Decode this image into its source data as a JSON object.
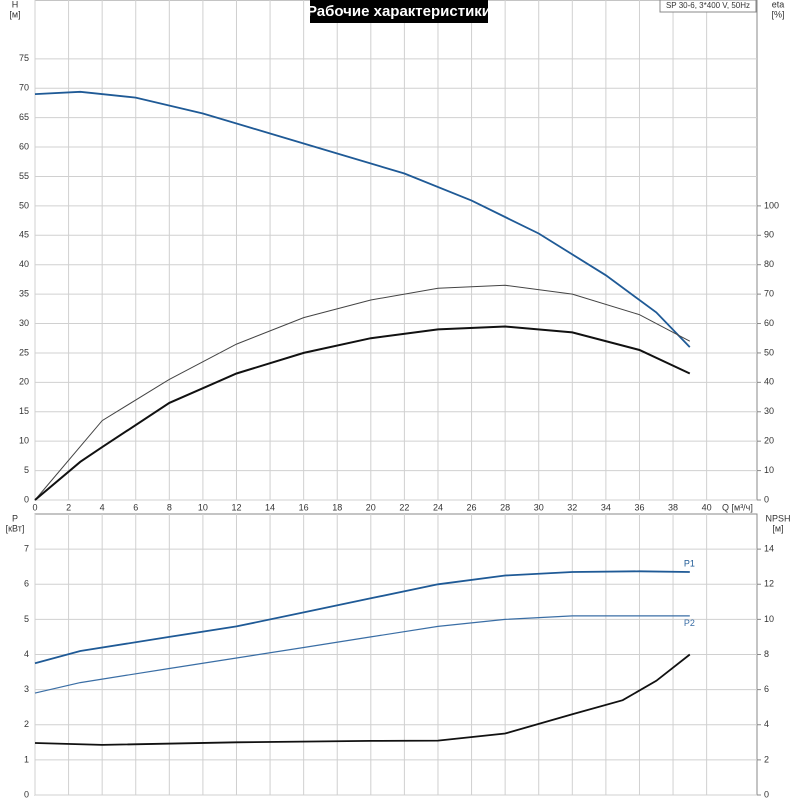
{
  "chart_data": [
    {
      "type": "line",
      "title": "Рабочие характеристики",
      "model": "SP 30-6, 3*400 V, 50Hz",
      "y_label": "H",
      "y_unit": "[м]",
      "y2_label": "eta",
      "y2_unit": "[%]",
      "x_label": "Q [м³/ч]",
      "xlim": [
        0,
        43
      ],
      "xticks": [
        0,
        2,
        4,
        6,
        8,
        10,
        12,
        14,
        16,
        18,
        20,
        22,
        24,
        26,
        28,
        30,
        32,
        34,
        36,
        38,
        40
      ],
      "ylim": [
        0,
        85
      ],
      "yticks": [
        0,
        5,
        10,
        15,
        20,
        25,
        30,
        35,
        40,
        45,
        50,
        55,
        60,
        65,
        70,
        75
      ],
      "y2lim": [
        0,
        170
      ],
      "y2ticks": [
        0,
        10,
        20,
        30,
        40,
        50,
        60,
        70,
        80,
        90,
        100
      ],
      "grid": true,
      "series": [
        {
          "color": "#1f5a96",
          "width": 1.8,
          "x": [
            0,
            2.7,
            6,
            10,
            14,
            18,
            22,
            26,
            30,
            34,
            37,
            39
          ],
          "values": [
            69,
            69.4,
            68.4,
            65.7,
            62.3,
            58.9,
            55.5,
            50.9,
            45.3,
            38.2,
            31.9,
            26
          ]
        },
        {
          "color": "#444444",
          "width": 1,
          "axis": "y2",
          "x": [
            0,
            4,
            8,
            12,
            16,
            20,
            24,
            28,
            32,
            36,
            39
          ],
          "values": [
            0,
            27,
            41,
            53,
            62,
            68,
            72,
            73,
            70,
            63,
            54
          ]
        },
        {
          "color": "#111111",
          "width": 2,
          "axis": "y2",
          "x": [
            0,
            2.7,
            4,
            8,
            12,
            16,
            20,
            24,
            28,
            32,
            36,
            39
          ],
          "values": [
            0,
            13,
            18,
            33,
            43,
            50,
            55,
            58,
            59,
            57,
            51,
            43
          ]
        }
      ]
    },
    {
      "type": "line",
      "y_label": "P",
      "y_unit": "[кВт]",
      "y2_label": "NPSH",
      "y2_unit": "[м]",
      "xlim": [
        0,
        43
      ],
      "ylim": [
        0,
        8
      ],
      "yticks": [
        0,
        1,
        2,
        3,
        4,
        5,
        6,
        7
      ],
      "y2lim": [
        0,
        16
      ],
      "y2ticks": [
        0,
        2,
        4,
        6,
        8,
        10,
        12,
        14
      ],
      "grid": true,
      "series": [
        {
          "name": "P1",
          "color": "#1f5a96",
          "width": 1.8,
          "x": [
            0,
            2.7,
            8,
            12,
            16,
            20,
            24,
            28,
            32,
            36,
            39
          ],
          "values": [
            3.75,
            4.1,
            4.5,
            4.8,
            5.2,
            5.6,
            6.0,
            6.25,
            6.35,
            6.37,
            6.35
          ]
        },
        {
          "name": "P2",
          "color": "#3a6ea5",
          "width": 1.2,
          "x": [
            0,
            2.7,
            8,
            12,
            16,
            20,
            24,
            28,
            32,
            36,
            39
          ],
          "values": [
            2.9,
            3.2,
            3.6,
            3.9,
            4.2,
            4.5,
            4.8,
            5.0,
            5.1,
            5.1,
            5.1
          ]
        },
        {
          "color": "#111111",
          "width": 1.8,
          "axis": "y2",
          "x": [
            0,
            4,
            12,
            20,
            24,
            28,
            32,
            35,
            37,
            39
          ],
          "values": [
            2.96,
            2.85,
            3.0,
            3.08,
            3.1,
            3.5,
            4.6,
            5.4,
            6.5,
            8.0
          ]
        }
      ]
    }
  ]
}
